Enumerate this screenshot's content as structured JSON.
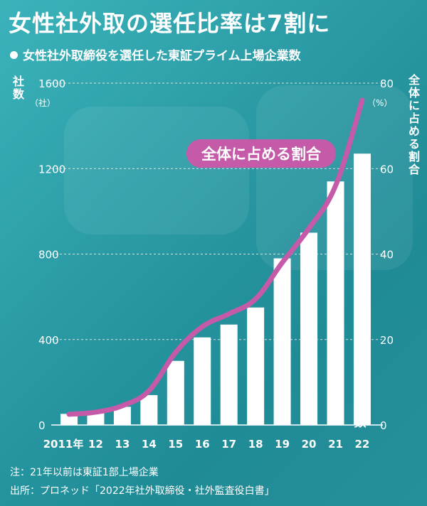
{
  "title": "女性社外取の選任比率は7割に",
  "subtitle": "女性社外取締役を選任した東証プライム上場企業数",
  "left_axis_title": "社数",
  "left_axis_unit": "（社）",
  "right_axis_title": "全体に占める割合",
  "right_axis_unit": "（%）",
  "line_label": "全体に占める割合",
  "bar_label": "社数",
  "notes": {
    "note": "注：21年以前は東証1部上場企業",
    "source": "出所：プロネッド「2022年社外取締役・社外監査役白書」"
  },
  "colors": {
    "bar": "#ffffff",
    "line": "#c45aa8",
    "label_bg": "#c45aa8",
    "background": "#2aa0aa"
  },
  "chart_data": {
    "type": "bar",
    "categories": [
      "2011年",
      "12",
      "13",
      "14",
      "15",
      "16",
      "17",
      "18",
      "19",
      "20",
      "21",
      "22"
    ],
    "series": [
      {
        "name": "社数",
        "type": "bar",
        "axis": "left",
        "values": [
          52,
          60,
          85,
          140,
          300,
          410,
          470,
          550,
          780,
          900,
          1140,
          1270
        ]
      },
      {
        "name": "全体に占める割合",
        "type": "line",
        "axis": "right",
        "values": [
          2.5,
          3,
          4.5,
          8,
          17,
          23,
          26,
          29.5,
          38,
          46,
          56,
          76
        ]
      }
    ],
    "left_axis": {
      "ylim": [
        0,
        1600
      ],
      "ticks": [
        "0",
        "400",
        "800",
        "1200",
        "1600"
      ]
    },
    "right_axis": {
      "ylim": [
        0,
        80
      ],
      "ticks": [
        "0",
        "20",
        "40",
        "60",
        "80"
      ]
    },
    "grid": "horizontal-dashed"
  }
}
